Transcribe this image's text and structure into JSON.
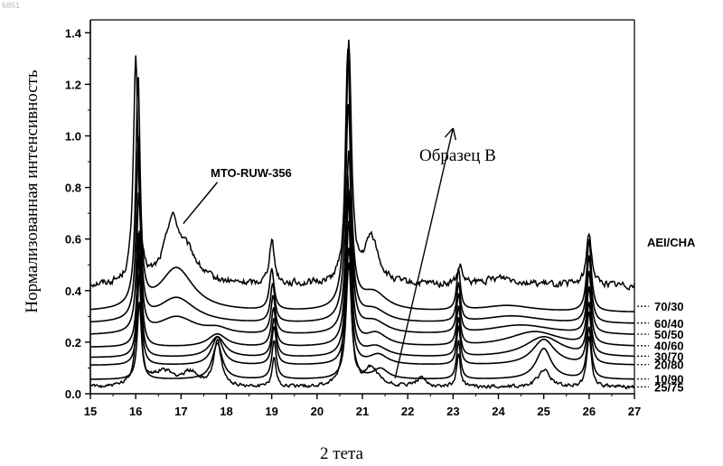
{
  "corner_mark": "6851",
  "chart_data": {
    "type": "line",
    "title": "",
    "xlabel": "2 тета",
    "ylabel": "Нормализованная интенсивность",
    "xlim": [
      15,
      27
    ],
    "ylim": [
      0,
      1.45
    ],
    "x_ticks": [
      "15",
      "16",
      "17",
      "18",
      "19",
      "20",
      "21",
      "22",
      "23",
      "24",
      "25",
      "26",
      "27"
    ],
    "y_ticks": [
      "0.0",
      "0.2",
      "0.4",
      "0.6",
      "0.8",
      "1.0",
      "1.2",
      "1.4"
    ],
    "legend_title": "AEI/CHA",
    "annotations": [
      {
        "text": "MTO-RUW-356",
        "arrow_from": [
          17.8,
          0.82
        ],
        "arrow_to": [
          17.05,
          0.66
        ]
      },
      {
        "text": "Образец B",
        "arrow_from": [
          23.0,
          1.03
        ],
        "arrow_to": [
          21.72,
          0.06
        ]
      }
    ],
    "series": [
      {
        "name": "MTO-RUW-356",
        "label": "",
        "baseline": 0.42,
        "noise": 0.022,
        "peaks": [
          [
            16.0,
            0.88,
            0.06
          ],
          [
            16.8,
            0.23,
            0.2
          ],
          [
            17.15,
            0.1,
            0.28
          ],
          [
            19.0,
            0.17,
            0.07
          ],
          [
            20.7,
            0.92,
            0.07
          ],
          [
            21.2,
            0.18,
            0.18
          ],
          [
            23.15,
            0.07,
            0.06
          ],
          [
            24.1,
            0.03,
            0.4
          ],
          [
            26.0,
            0.2,
            0.07
          ]
        ]
      },
      {
        "name": "70/30",
        "label": "70/30",
        "baseline": 0.315,
        "peaks": [
          [
            16.05,
            0.9,
            0.055
          ],
          [
            16.9,
            0.17,
            0.45
          ],
          [
            19.0,
            0.16,
            0.06
          ],
          [
            20.68,
            1.0,
            0.07
          ],
          [
            21.25,
            0.07,
            0.35
          ],
          [
            23.12,
            0.16,
            0.05
          ],
          [
            24.2,
            0.025,
            0.7
          ],
          [
            26.0,
            0.28,
            0.06
          ]
        ]
      },
      {
        "name": "60/40",
        "label": "60/40",
        "baseline": 0.27,
        "peaks": [
          [
            16.06,
            0.7,
            0.055
          ],
          [
            16.9,
            0.1,
            0.5
          ],
          [
            19.02,
            0.15,
            0.06
          ],
          [
            20.69,
            0.85,
            0.07
          ],
          [
            21.25,
            0.05,
            0.35
          ],
          [
            23.12,
            0.15,
            0.05
          ],
          [
            24.3,
            0.03,
            0.8
          ],
          [
            26.0,
            0.26,
            0.06
          ]
        ]
      },
      {
        "name": "50/50",
        "label": "50/50",
        "baseline": 0.225,
        "peaks": [
          [
            16.07,
            0.55,
            0.055
          ],
          [
            16.9,
            0.07,
            0.5
          ],
          [
            17.8,
            0.02,
            0.3
          ],
          [
            19.03,
            0.15,
            0.06
          ],
          [
            20.7,
            0.7,
            0.07
          ],
          [
            21.25,
            0.05,
            0.35
          ],
          [
            23.12,
            0.15,
            0.05
          ],
          [
            24.5,
            0.04,
            0.9
          ],
          [
            26.0,
            0.24,
            0.06
          ]
        ]
      },
      {
        "name": "40/60",
        "label": "40/60",
        "baseline": 0.18,
        "peaks": [
          [
            16.08,
            0.45,
            0.055
          ],
          [
            17.8,
            0.05,
            0.25
          ],
          [
            19.04,
            0.15,
            0.06
          ],
          [
            20.7,
            0.6,
            0.07
          ],
          [
            21.3,
            0.05,
            0.3
          ],
          [
            23.12,
            0.15,
            0.05
          ],
          [
            24.8,
            0.06,
            0.7
          ],
          [
            26.0,
            0.22,
            0.06
          ]
        ]
      },
      {
        "name": "30/70",
        "label": "30/70",
        "baseline": 0.14,
        "peaks": [
          [
            16.08,
            0.4,
            0.055
          ],
          [
            17.8,
            0.08,
            0.2
          ],
          [
            19.05,
            0.15,
            0.06
          ],
          [
            20.7,
            0.52,
            0.07
          ],
          [
            21.3,
            0.04,
            0.3
          ],
          [
            23.12,
            0.15,
            0.05
          ],
          [
            25.0,
            0.08,
            0.5
          ],
          [
            26.0,
            0.2,
            0.06
          ]
        ]
      },
      {
        "name": "20/80",
        "label": "20/80",
        "baseline": 0.11,
        "peaks": [
          [
            16.08,
            0.35,
            0.055
          ],
          [
            17.8,
            0.11,
            0.15
          ],
          [
            19.05,
            0.15,
            0.06
          ],
          [
            20.7,
            0.45,
            0.07
          ],
          [
            21.35,
            0.04,
            0.25
          ],
          [
            23.12,
            0.15,
            0.05
          ],
          [
            25.0,
            0.1,
            0.3
          ],
          [
            26.0,
            0.2,
            0.06
          ]
        ]
      },
      {
        "name": "10/90",
        "label": "10/90",
        "baseline": 0.055,
        "peaks": [
          [
            16.08,
            0.3,
            0.055
          ],
          [
            17.8,
            0.14,
            0.13
          ],
          [
            19.05,
            0.15,
            0.06
          ],
          [
            20.7,
            0.45,
            0.07
          ],
          [
            21.4,
            0.04,
            0.2
          ],
          [
            23.12,
            0.15,
            0.05
          ],
          [
            25.0,
            0.12,
            0.2
          ],
          [
            26.0,
            0.2,
            0.06
          ]
        ]
      },
      {
        "name": "25/75",
        "label": "25/75",
        "baseline": 0.025,
        "noise": 0.012,
        "peaks": [
          [
            16.06,
            0.58,
            0.05
          ],
          [
            16.6,
            0.06,
            0.3
          ],
          [
            17.2,
            0.05,
            0.2
          ],
          [
            17.8,
            0.17,
            0.1
          ],
          [
            19.05,
            0.12,
            0.05
          ],
          [
            20.68,
            0.82,
            0.06
          ],
          [
            21.2,
            0.07,
            0.18
          ],
          [
            22.3,
            0.03,
            0.15
          ],
          [
            23.12,
            0.13,
            0.05
          ],
          [
            25.0,
            0.07,
            0.15
          ],
          [
            26.0,
            0.2,
            0.06
          ]
        ]
      }
    ]
  }
}
